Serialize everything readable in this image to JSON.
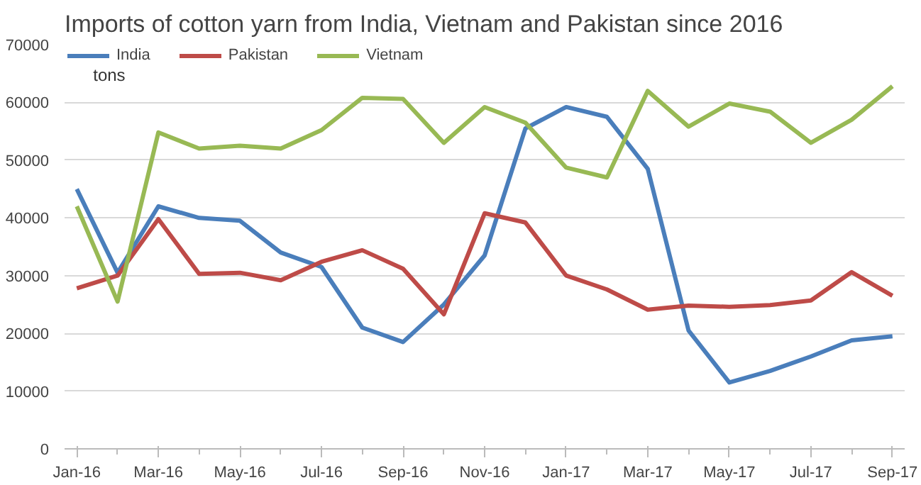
{
  "chart_data": {
    "type": "line",
    "title": "Imports of cotton yarn from India, Vietnam and Pakistan since 2016",
    "categories": [
      "Jan-16",
      null,
      "Mar-16",
      null,
      "May-16",
      null,
      "Jul-16",
      null,
      "Sep-16",
      null,
      "Nov-16",
      null,
      "Jan-17",
      null,
      "Mar-17",
      null,
      "May-17",
      null,
      "Jul-17",
      null,
      "Sep-17"
    ],
    "series": [
      {
        "name": "India",
        "color": "#4a7ebb",
        "values": [
          45000,
          30500,
          42000,
          40000,
          39500,
          34000,
          31500,
          21000,
          18500,
          25000,
          33500,
          55500,
          59200,
          57500,
          48500,
          20500,
          11500,
          13500,
          16000,
          18800,
          19500
        ]
      },
      {
        "name": "Pakistan",
        "color": "#be4b48",
        "values": [
          27800,
          30000,
          39800,
          30300,
          30500,
          29200,
          32400,
          34400,
          31200,
          23300,
          40800,
          39200,
          30000,
          27600,
          24100,
          24800,
          24600,
          24900,
          25700,
          30600,
          26500
        ]
      },
      {
        "name": "Vietnam",
        "color": "#98b954",
        "values": [
          42000,
          25500,
          54800,
          52000,
          52500,
          52000,
          55200,
          60800,
          60600,
          53000,
          59200,
          56500,
          48700,
          47000,
          62000,
          55800,
          59800,
          58400,
          53000,
          57000,
          62800
        ]
      }
    ],
    "ylim": [
      0,
      70000
    ],
    "yticks": [
      0,
      10000,
      20000,
      30000,
      40000,
      50000,
      60000,
      70000
    ],
    "grid": "y",
    "legend": "top",
    "marker": "none",
    "line_style": "solid",
    "annotations": [
      "tons"
    ]
  }
}
